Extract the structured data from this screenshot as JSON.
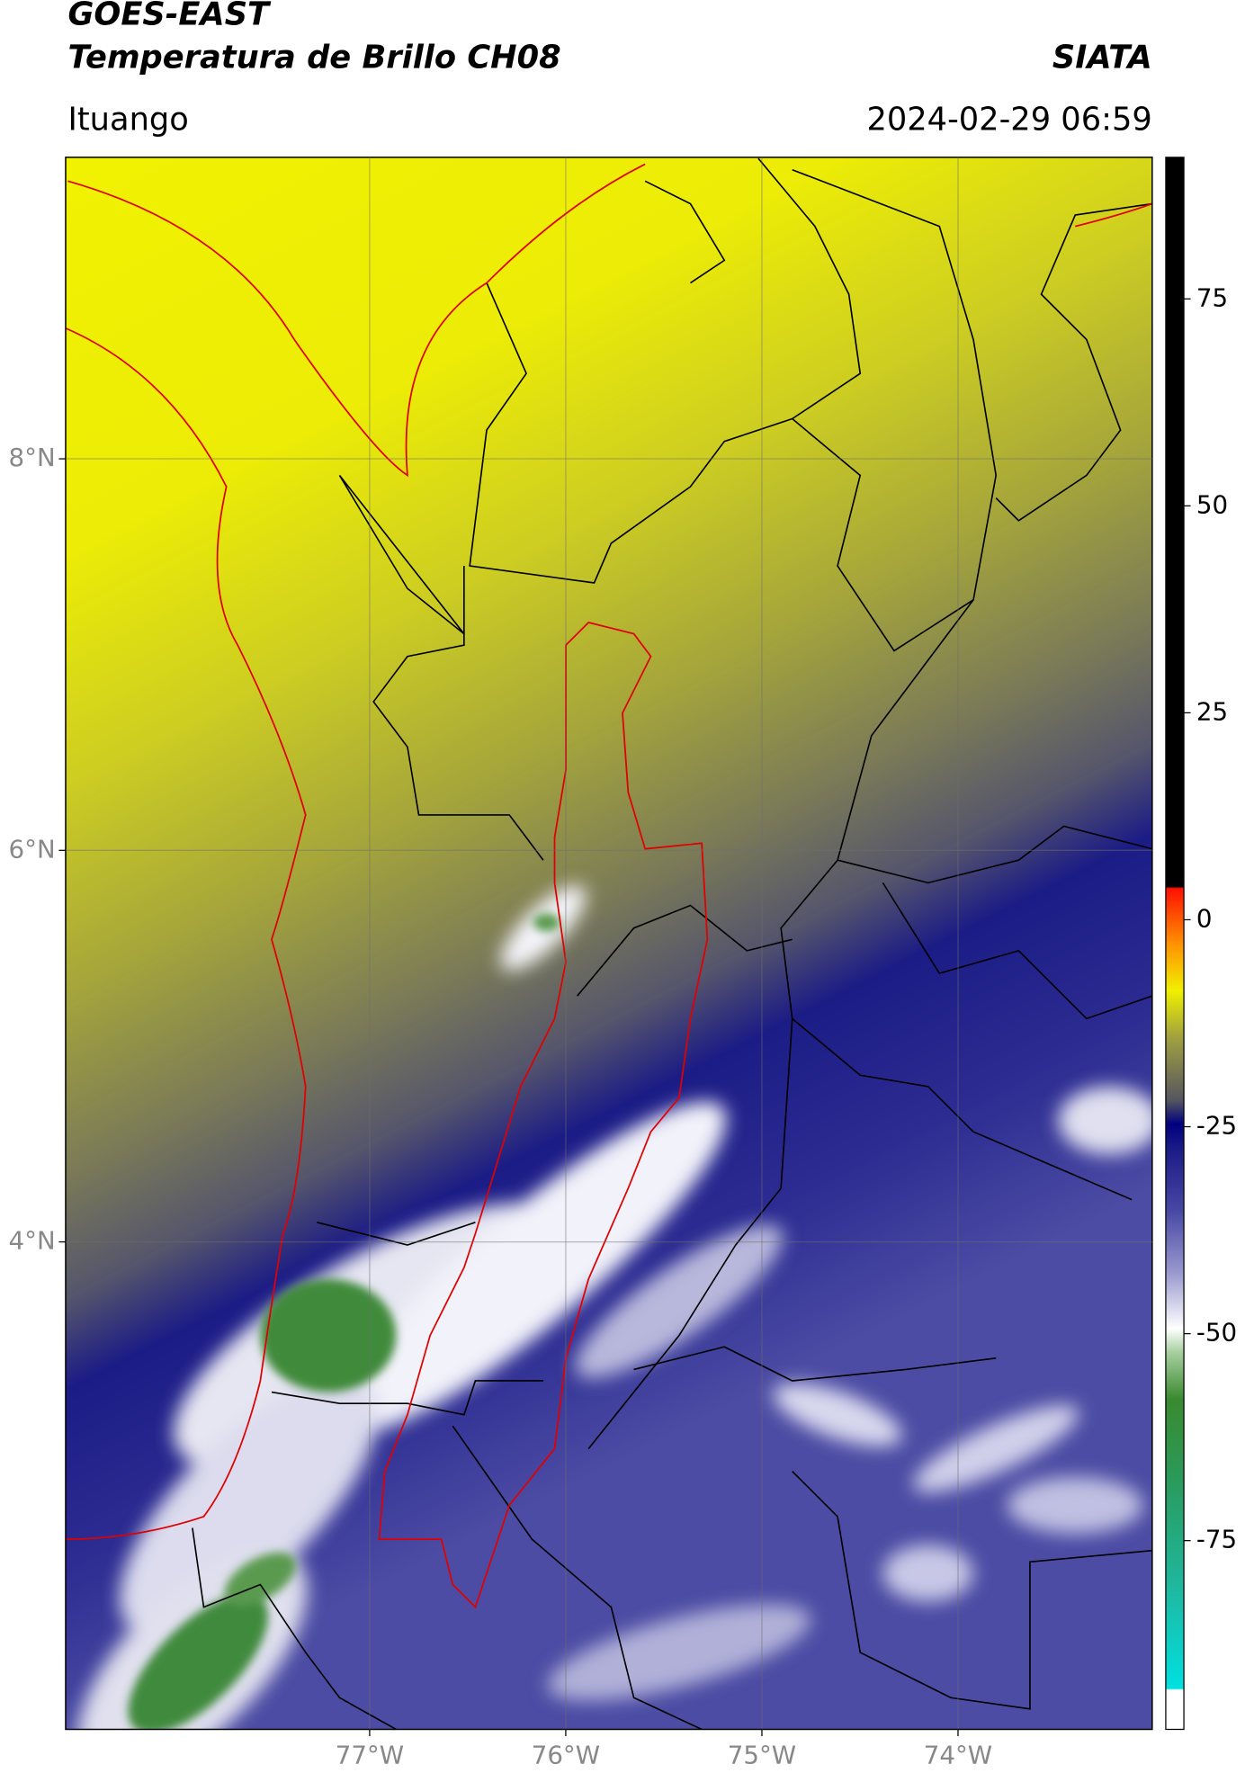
{
  "chart_data": {
    "type": "map",
    "title": "GOES-EAST",
    "subtitle": "Temperatura de Brillo CH08",
    "source": "SIATA",
    "location": "Ituango",
    "date": "2024-02-29 06:59",
    "xlim": [
      -78.55,
      -73.01
    ],
    "ylim": [
      1.51,
      9.54
    ],
    "xticks": [
      {
        "value": -77,
        "label": "77°W"
      },
      {
        "value": -76,
        "label": "76°W"
      },
      {
        "value": -75,
        "label": "75°W"
      },
      {
        "value": -74,
        "label": "74°W"
      }
    ],
    "yticks": [
      {
        "value": 8,
        "label": "8°N"
      },
      {
        "value": 6,
        "label": "6°N"
      },
      {
        "value": 4,
        "label": "4°N"
      }
    ],
    "grid": true,
    "colorbar": {
      "lim": [
        -97.8,
        92.1
      ],
      "ticks": [
        75,
        50,
        25,
        0,
        -25,
        -50,
        -75
      ]
    }
  }
}
